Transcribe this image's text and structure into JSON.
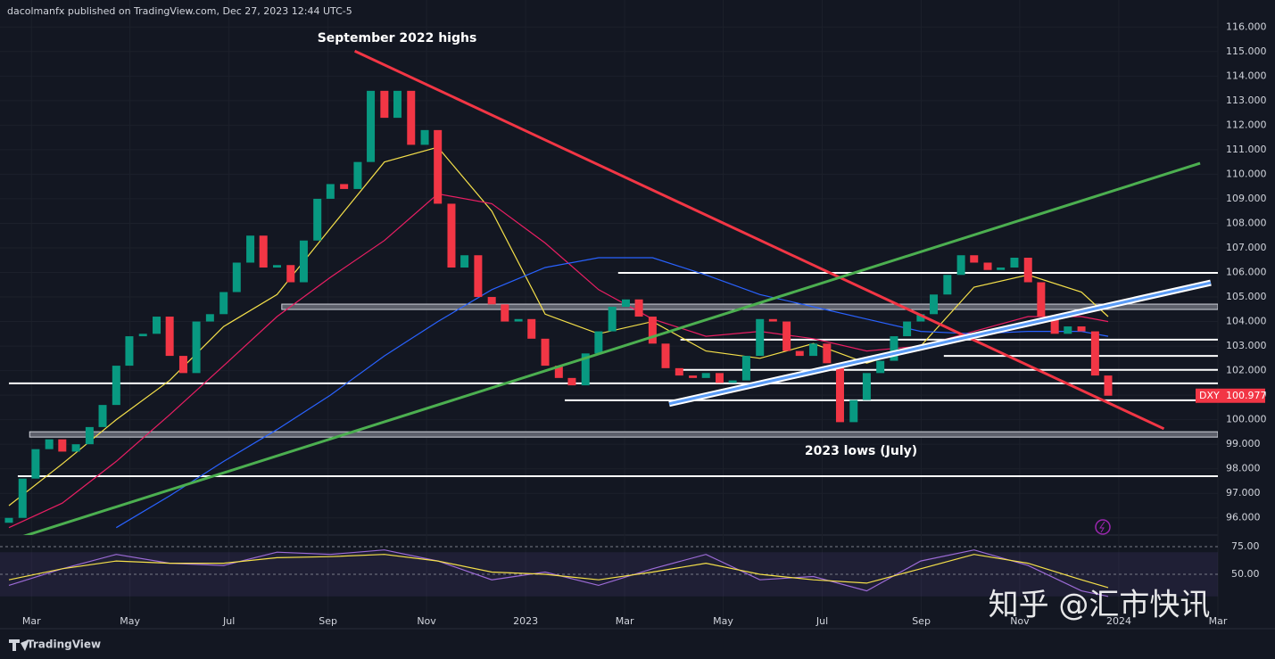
{
  "chart_data": {
    "type": "candlestick",
    "header": "dacolmanfx published on TradingView.com, Dec 27, 2023 12:44 UTC-5",
    "name": "DXY",
    "footer": "TradingView",
    "watermark": "知乎 @汇市快讯",
    "annotations": [
      "September 2022 highs",
      "2023 lows (July)"
    ],
    "up_color": "#089981",
    "down_color": "#f23645",
    "x": [
      2022.129,
      2022.152,
      2022.174,
      2022.197,
      2022.219,
      2022.242,
      2022.265,
      2022.287,
      2022.31,
      2022.332,
      2022.355,
      2022.378,
      2022.4,
      2022.423,
      2022.445,
      2022.468,
      2022.491,
      2022.513,
      2022.536,
      2022.558,
      2022.581,
      2022.604,
      2022.626,
      2022.649,
      2022.671,
      2022.694,
      2022.717,
      2022.739,
      2022.762,
      2022.784,
      2022.807,
      2022.83,
      2022.852,
      2022.875,
      2022.897,
      2022.92,
      2022.943,
      2022.965,
      2022.988,
      2023.01,
      2023.033,
      2023.056,
      2023.078,
      2023.101,
      2023.123,
      2023.146,
      2023.169,
      2023.191,
      2023.214,
      2023.236,
      2023.259,
      2023.282,
      2023.304,
      2023.327,
      2023.349,
      2023.372,
      2023.395,
      2023.417,
      2023.44,
      2023.462,
      2023.485,
      2023.508,
      2023.53,
      2023.553,
      2023.575,
      2023.598,
      2023.621,
      2023.643,
      2023.666,
      2023.688,
      2023.711,
      2023.734,
      2023.756,
      2023.779,
      2023.801,
      2023.824,
      2023.847,
      2023.869,
      2023.892,
      2023.914,
      2023.937,
      2023.96,
      2023.982
    ],
    "open": [
      95.8,
      96.0,
      97.6,
      98.8,
      99.2,
      98.7,
      99.0,
      99.7,
      100.6,
      102.2,
      103.4,
      103.5,
      104.2,
      102.6,
      101.9,
      104.0,
      104.3,
      105.2,
      106.4,
      107.5,
      106.2,
      106.3,
      105.6,
      107.3,
      109.0,
      109.6,
      109.4,
      110.5,
      113.4,
      112.3,
      113.4,
      111.2,
      111.8,
      108.8,
      106.2,
      106.7,
      105.0,
      104.7,
      104.0,
      104.1,
      103.3,
      102.2,
      101.7,
      101.4,
      102.7,
      103.6,
      104.6,
      104.9,
      104.2,
      103.1,
      102.1,
      101.8,
      101.7,
      101.9,
      101.5,
      101.6,
      102.6,
      104.1,
      104.0,
      102.8,
      102.6,
      103.1,
      102.3,
      99.9,
      100.8,
      101.9,
      102.4,
      103.4,
      104.0,
      104.3,
      105.1,
      105.9,
      106.7,
      106.4,
      106.1,
      106.2,
      106.6,
      105.6,
      104.2,
      103.5,
      103.8,
      103.6,
      101.8
    ],
    "close": [
      96.0,
      97.6,
      98.8,
      99.2,
      98.7,
      99.0,
      99.7,
      100.6,
      102.2,
      103.4,
      103.5,
      104.2,
      102.6,
      101.9,
      104.0,
      104.3,
      105.2,
      106.4,
      107.5,
      106.2,
      106.3,
      105.6,
      107.3,
      109.0,
      109.6,
      109.4,
      110.5,
      113.4,
      112.3,
      113.4,
      111.2,
      111.8,
      108.8,
      106.2,
      106.7,
      105.0,
      104.7,
      104.0,
      104.1,
      103.3,
      102.2,
      101.7,
      101.4,
      102.7,
      103.6,
      104.6,
      104.9,
      104.2,
      103.1,
      102.1,
      101.8,
      101.7,
      101.9,
      101.5,
      101.6,
      102.6,
      104.1,
      104.0,
      102.8,
      102.6,
      103.1,
      102.3,
      99.9,
      100.8,
      101.9,
      102.4,
      103.4,
      104.0,
      104.3,
      105.1,
      105.9,
      106.7,
      106.4,
      106.1,
      106.2,
      106.6,
      105.6,
      104.2,
      103.5,
      103.8,
      103.6,
      101.8,
      100.977
    ],
    "xlim": [
      2022.114,
      2024.167
    ],
    "xticks": [
      {
        "value": 2022.167,
        "label": "Mar"
      },
      {
        "value": 2022.333,
        "label": "May"
      },
      {
        "value": 2022.5,
        "label": "Jul"
      },
      {
        "value": 2022.667,
        "label": "Sep"
      },
      {
        "value": 2022.833,
        "label": "Nov"
      },
      2023,
      {
        "value": 2023.167,
        "label": "Mar"
      },
      {
        "value": 2023.333,
        "label": "May"
      },
      {
        "value": 2023.5,
        "label": "Jul"
      },
      {
        "value": 2023.667,
        "label": "Sep"
      },
      {
        "value": 2023.833,
        "label": "Nov"
      },
      2024,
      {
        "value": 2024.167,
        "label": "Mar"
      }
    ],
    "ylim": [
      95.3,
      117.1
    ],
    "yticks": [
      {
        "value": 96,
        "label": "96.000"
      },
      {
        "value": 97,
        "label": "97.000"
      },
      {
        "value": 98,
        "label": "98.000"
      },
      {
        "value": 99,
        "label": "99.000"
      },
      {
        "value": 100,
        "label": "100.000"
      },
      {
        "value": 101,
        "label": "101.000"
      },
      {
        "value": 102,
        "label": "102.000"
      },
      {
        "value": 103,
        "label": "103.000"
      },
      {
        "value": 104,
        "label": "104.000"
      },
      {
        "value": 105,
        "label": "105.000"
      },
      {
        "value": 106,
        "label": "106.000"
      },
      {
        "value": 107,
        "label": "107.000"
      },
      {
        "value": 108,
        "label": "108.000"
      },
      {
        "value": 109,
        "label": "109.000"
      },
      {
        "value": 110,
        "label": "110.000"
      },
      {
        "value": 111,
        "label": "111.000"
      },
      {
        "value": 112,
        "label": "112.000"
      },
      {
        "value": 113,
        "label": "113.000"
      },
      {
        "value": 114,
        "label": "114.000"
      },
      {
        "value": 115,
        "label": "115.000"
      },
      {
        "value": 116,
        "label": "116.000"
      }
    ],
    "grid": true,
    "moving_averages": [
      {
        "color": "#f5e04a",
        "x": [
          2022.129,
          2022.219,
          2022.31,
          2022.4,
          2022.491,
          2022.581,
          2022.671,
          2022.762,
          2022.852,
          2022.943,
          2023.033,
          2023.123,
          2023.214,
          2023.304,
          2023.395,
          2023.485,
          2023.575,
          2023.666,
          2023.756,
          2023.847,
          2023.937,
          2023.982
        ],
        "values": [
          96.5,
          98.2,
          100,
          101.6,
          103.8,
          105.1,
          107.8,
          110.5,
          111.1,
          108.5,
          104.3,
          103.5,
          104,
          102.8,
          102.5,
          103.1,
          102.3,
          103,
          105.4,
          105.9,
          105.2,
          104.2
        ]
      },
      {
        "color": "#e91e63",
        "x": [
          2022.129,
          2022.219,
          2022.31,
          2022.4,
          2022.491,
          2022.581,
          2022.671,
          2022.762,
          2022.852,
          2022.943,
          2023.033,
          2023.123,
          2023.214,
          2023.304,
          2023.395,
          2023.485,
          2023.575,
          2023.666,
          2023.756,
          2023.847,
          2023.937,
          2023.982
        ],
        "values": [
          95.6,
          96.6,
          98.3,
          100.2,
          102.2,
          104.2,
          105.8,
          107.3,
          109.2,
          108.8,
          107.2,
          105.3,
          104.1,
          103.4,
          103.6,
          103.3,
          102.8,
          103,
          103.6,
          104.2,
          104.2,
          104.0
        ]
      },
      {
        "color": "#2962ff",
        "x": [
          2022.129,
          2022.219,
          2022.31,
          2022.4,
          2022.491,
          2022.581,
          2022.671,
          2022.762,
          2022.852,
          2022.943,
          2023.033,
          2023.123,
          2023.214,
          2023.304,
          2023.395,
          2023.485,
          2023.575,
          2023.666,
          2023.756,
          2023.847,
          2023.937,
          2023.982
        ],
        "values": [
          null,
          null,
          95.6,
          96.9,
          98.3,
          99.6,
          101,
          102.6,
          104,
          105.3,
          106.2,
          106.6,
          106.6,
          105.9,
          105.1,
          104.6,
          104.1,
          103.6,
          103.5,
          103.6,
          103.6,
          103.4
        ]
      }
    ],
    "levels": [
      {
        "value": 105.98,
        "x_start": 2023.156,
        "style": "line"
      },
      {
        "value": 104.6,
        "x_start": 2022.589,
        "style": "band"
      },
      {
        "value": 103.26,
        "x_start": 2023.261,
        "style": "line"
      },
      {
        "value": 102.6,
        "x_start": 2023.705,
        "style": "line"
      },
      {
        "value": 102.03,
        "x_start": 2023.261,
        "style": "line"
      },
      {
        "value": 101.48,
        "x_start": 2022.129,
        "style": "line"
      },
      {
        "value": 100.79,
        "x_start": 2023.066,
        "style": "line"
      },
      {
        "value": 99.4,
        "x_start": 2022.164,
        "style": "band"
      },
      {
        "value": 97.7,
        "x_start": 2022.144,
        "style": "line"
      }
    ],
    "trend_lines": [
      {
        "color": "#f23645",
        "x": [
          2022.712,
          2024.076
        ],
        "values": [
          115.02,
          99.63
        ]
      },
      {
        "color": "#4caf50",
        "x": [
          2022.147,
          2024.137
        ],
        "values": [
          95.2,
          110.45
        ]
      },
      {
        "color": "#5b9cf6",
        "x": [
          2023.242,
          2024.155
        ],
        "values": [
          100.65,
          105.58
        ]
      }
    ],
    "rsi": {
      "ylim": [
        0.8,
        85.5
      ],
      "yticks": [
        {
          "value": 75,
          "label": "75.00"
        },
        {
          "value": 50,
          "label": "50.00"
        }
      ],
      "band": [
        30,
        70
      ],
      "x": [
        2022.129,
        2022.219,
        2022.31,
        2022.4,
        2022.491,
        2022.581,
        2022.671,
        2022.762,
        2022.852,
        2022.943,
        2023.033,
        2023.123,
        2023.214,
        2023.304,
        2023.395,
        2023.485,
        2023.575,
        2023.666,
        2023.756,
        2023.847,
        2023.937,
        2023.982
      ],
      "series": [
        {
          "color": "#9c6bd6",
          "values": [
            40,
            55,
            68,
            60,
            58,
            70,
            68,
            72,
            62,
            45,
            52,
            40,
            55,
            68,
            45,
            48,
            35,
            62,
            72,
            58,
            35,
            30
          ]
        },
        {
          "color": "#f5e04a",
          "values": [
            45,
            55,
            62,
            60,
            60,
            65,
            66,
            68,
            62,
            52,
            50,
            45,
            52,
            60,
            50,
            45,
            42,
            55,
            68,
            60,
            45,
            38
          ]
        }
      ]
    }
  }
}
